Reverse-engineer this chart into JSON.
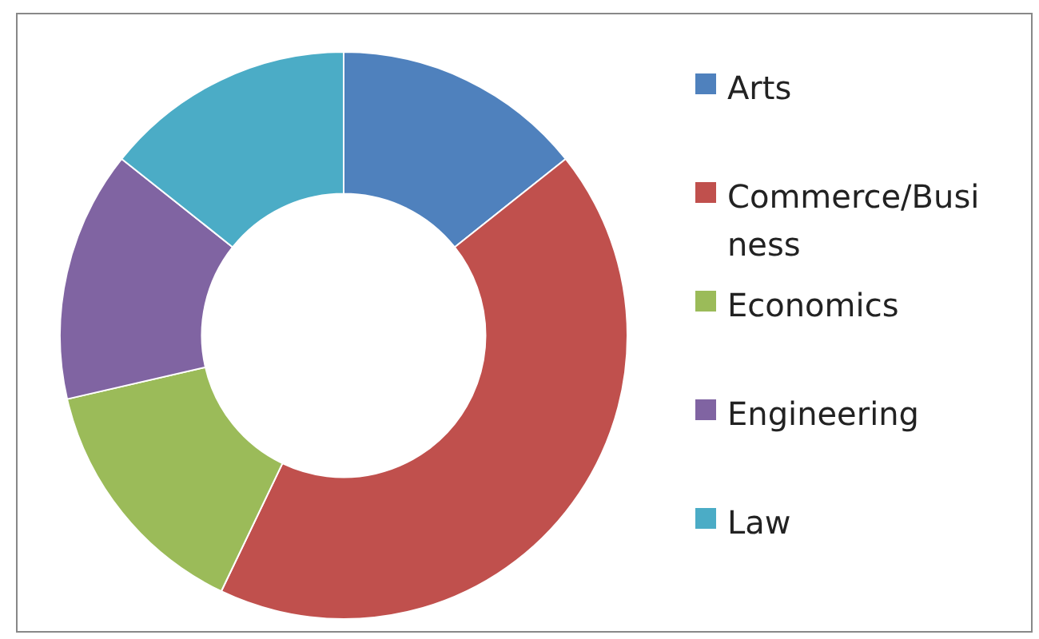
{
  "chart_data": {
    "type": "donut",
    "categories": [
      "Arts",
      "Commerce/Business",
      "Economics",
      "Engineering",
      "Law"
    ],
    "values": [
      14.3,
      42.8,
      14.3,
      14.3,
      14.3
    ],
    "colors": [
      "#4f81bd",
      "#c0504d",
      "#9bbb59",
      "#8064a2",
      "#4bacc6"
    ],
    "legend": "right"
  }
}
